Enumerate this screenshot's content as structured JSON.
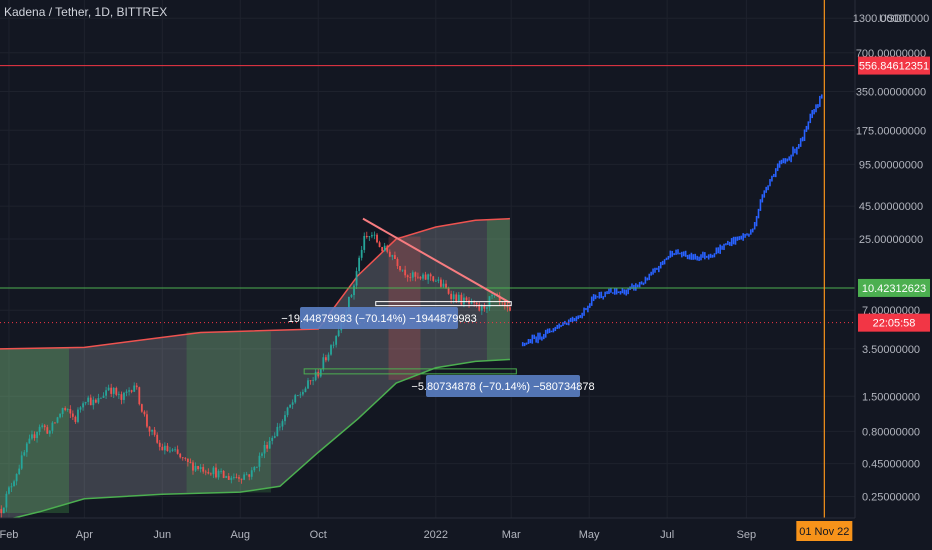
{
  "header": {
    "title": "Kadena / Tether, 1D, BITTREX"
  },
  "chart_data": {
    "type": "line",
    "title": "Kadena / Tether, 1D, BITTREX",
    "y_scale": "log",
    "ylim": [
      0.17,
      1800
    ],
    "y_unit": "USDT",
    "y_ticks": [
      {
        "value": 1300,
        "label": "1300.00000000"
      },
      {
        "value": 700,
        "label": "700.00000000"
      },
      {
        "value": 350,
        "label": "350.00000000"
      },
      {
        "value": 175,
        "label": "175.00000000"
      },
      {
        "value": 95,
        "label": "95.00000000"
      },
      {
        "value": 45,
        "label": "45.00000000"
      },
      {
        "value": 25,
        "label": "25.00000000"
      },
      {
        "value": 7,
        "label": "7.00000000"
      },
      {
        "value": 3.5,
        "label": "3.50000000"
      },
      {
        "value": 1.5,
        "label": "1.50000000"
      },
      {
        "value": 0.8,
        "label": "0.80000000"
      },
      {
        "value": 0.45,
        "label": "0.45000000"
      },
      {
        "value": 0.25,
        "label": "0.25000000"
      }
    ],
    "x_ticks": [
      {
        "date": "2021-02-01",
        "label": "Feb"
      },
      {
        "date": "2021-04-01",
        "label": "Apr"
      },
      {
        "date": "2021-06-01",
        "label": "Jun"
      },
      {
        "date": "2021-08-01",
        "label": "Aug"
      },
      {
        "date": "2021-10-01",
        "label": "Oct"
      },
      {
        "date": "2022-01-01",
        "label": "2022"
      },
      {
        "date": "2022-03-01",
        "label": "Mar"
      },
      {
        "date": "2022-05-01",
        "label": "May"
      },
      {
        "date": "2022-07-01",
        "label": "Jul"
      },
      {
        "date": "2022-09-01",
        "label": "Sep"
      }
    ],
    "xlim": [
      "2021-01-25",
      "2022-11-25"
    ],
    "series": [
      {
        "kind": "candles",
        "points": [
          [
            "2021-01-26",
            0.2
          ],
          [
            "2021-02-05",
            0.35
          ],
          [
            "2021-02-15",
            0.6
          ],
          [
            "2021-02-25",
            0.9
          ],
          [
            "2021-03-05",
            0.8
          ],
          [
            "2021-03-15",
            1.2
          ],
          [
            "2021-03-25",
            1.0
          ],
          [
            "2021-04-01",
            1.5
          ],
          [
            "2021-04-10",
            1.3
          ],
          [
            "2021-04-20",
            1.8
          ],
          [
            "2021-04-30",
            1.4
          ],
          [
            "2021-05-10",
            1.9
          ],
          [
            "2021-05-20",
            0.9
          ],
          [
            "2021-05-30",
            0.6
          ],
          [
            "2021-06-10",
            0.55
          ],
          [
            "2021-06-20",
            0.45
          ],
          [
            "2021-07-01",
            0.42
          ],
          [
            "2021-07-10",
            0.4
          ],
          [
            "2021-07-20",
            0.35
          ],
          [
            "2021-07-30",
            0.36
          ],
          [
            "2021-08-10",
            0.38
          ],
          [
            "2021-08-20",
            0.6
          ],
          [
            "2021-09-01",
            0.9
          ],
          [
            "2021-09-10",
            1.3
          ],
          [
            "2021-09-20",
            1.7
          ],
          [
            "2021-10-01",
            2.3
          ],
          [
            "2021-10-10",
            3.5
          ],
          [
            "2021-10-20",
            6
          ],
          [
            "2021-10-28",
            10
          ],
          [
            "2021-11-05",
            24
          ],
          [
            "2021-11-12",
            27
          ],
          [
            "2021-11-20",
            21
          ],
          [
            "2021-11-28",
            19
          ],
          [
            "2021-12-05",
            15
          ],
          [
            "2021-12-12",
            13
          ],
          [
            "2021-12-20",
            12
          ],
          [
            "2021-12-28",
            13
          ],
          [
            "2022-01-05",
            11
          ],
          [
            "2022-01-15",
            9
          ],
          [
            "2022-01-25",
            8
          ],
          [
            "2022-02-05",
            7
          ],
          [
            "2022-02-15",
            9
          ],
          [
            "2022-02-22",
            7.5
          ],
          [
            "2022-02-28",
            6.5
          ]
        ]
      },
      {
        "kind": "projection",
        "points": [
          [
            "2022-03-10",
            3.8
          ],
          [
            "2022-03-25",
            4.5
          ],
          [
            "2022-04-10",
            5.5
          ],
          [
            "2022-04-25",
            6.5
          ],
          [
            "2022-05-05",
            9
          ],
          [
            "2022-05-15",
            9.5
          ],
          [
            "2022-05-30",
            9.8
          ],
          [
            "2022-06-15",
            12
          ],
          [
            "2022-07-05",
            20
          ],
          [
            "2022-07-20",
            18
          ],
          [
            "2022-08-05",
            19
          ],
          [
            "2022-08-20",
            24
          ],
          [
            "2022-09-05",
            28
          ],
          [
            "2022-09-15",
            60
          ],
          [
            "2022-09-25",
            90
          ],
          [
            "2022-10-05",
            110
          ],
          [
            "2022-10-15",
            150
          ],
          [
            "2022-10-22",
            230
          ],
          [
            "2022-10-30",
            330
          ]
        ]
      }
    ],
    "band": {
      "upper": [
        [
          "2021-01-25",
          3.5
        ],
        [
          "2021-04-01",
          3.6
        ],
        [
          "2021-07-01",
          4.7
        ],
        [
          "2021-10-01",
          5.0
        ],
        [
          "2021-11-01",
          13
        ],
        [
          "2021-12-01",
          25
        ],
        [
          "2022-01-01",
          31
        ],
        [
          "2022-02-01",
          35
        ],
        [
          "2022-02-28",
          36
        ]
      ],
      "lower": [
        [
          "2021-01-25",
          0.16
        ],
        [
          "2021-02-25",
          0.19
        ],
        [
          "2021-04-01",
          0.24
        ],
        [
          "2021-06-01",
          0.26
        ],
        [
          "2021-08-01",
          0.27
        ],
        [
          "2021-09-01",
          0.3
        ],
        [
          "2021-10-01",
          0.55
        ],
        [
          "2021-11-01",
          1.0
        ],
        [
          "2021-12-01",
          1.9
        ],
        [
          "2022-01-01",
          2.5
        ],
        [
          "2022-02-01",
          2.8
        ],
        [
          "2022-02-28",
          2.9
        ]
      ]
    },
    "trendline": [
      [
        "2021-11-05",
        36
      ],
      [
        "2022-02-28",
        8
      ]
    ],
    "horizontal_lines": [
      {
        "value": 556.84612351,
        "color": "#f23645",
        "label": "556.84612351"
      },
      {
        "value": 10.42312623,
        "color": "#4caf50",
        "label": "10.42312623"
      }
    ],
    "last_price": {
      "value": 5.6,
      "label": "22:05:58",
      "color": "#f23645"
    },
    "vertical_line": {
      "date": "2022-11-01",
      "label": "01 Nov 22",
      "color": "#f7931a"
    },
    "measurements": [
      {
        "label": "−19.44879983 (−70.14%) −1944879983",
        "anchor_date": "2021-12-01",
        "anchor_value": 5.1
      },
      {
        "label": "−5.80734878 (−70.14%) −580734878",
        "anchor_date": "2022-01-15",
        "anchor_value": 2.0
      }
    ],
    "colors": {
      "background": "#131722",
      "up": "#26a69a",
      "down": "#ef5350",
      "projection": "#2962ff",
      "band_fill": "#d1d4dc",
      "band_upper": "#ef5350",
      "band_lower": "#4caf50"
    }
  }
}
